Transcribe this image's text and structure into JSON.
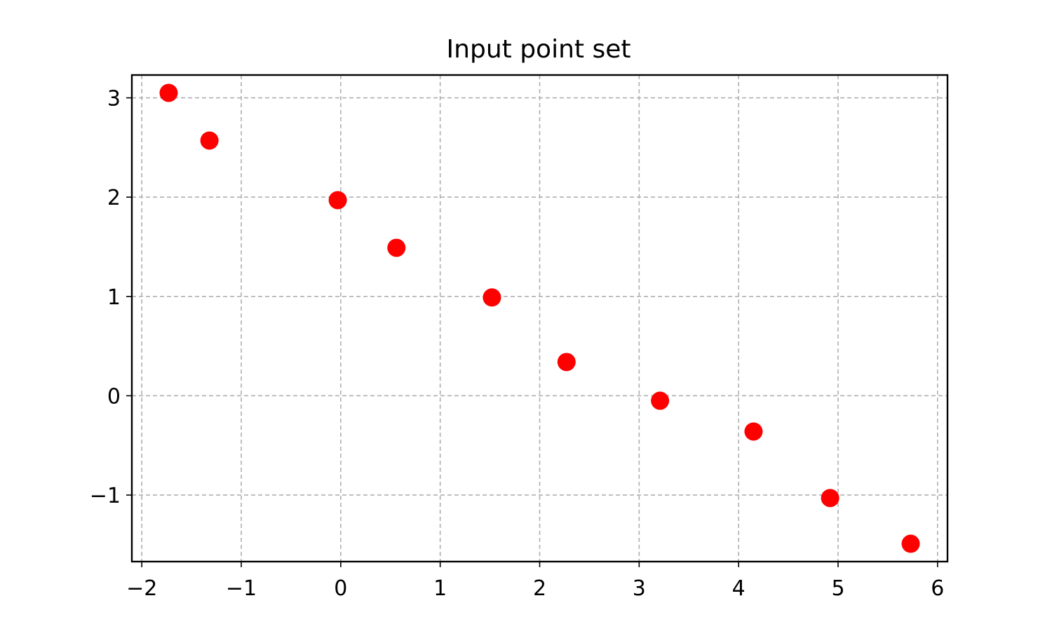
{
  "chart_data": {
    "type": "scatter",
    "title": "Input point set",
    "xlabel": "",
    "ylabel": "",
    "xlim": [
      -2.1,
      6.1
    ],
    "ylim": [
      -1.67,
      3.23
    ],
    "x_ticks": [
      -2,
      -1,
      0,
      1,
      2,
      3,
      4,
      5,
      6
    ],
    "x_tick_labels": [
      "−2",
      "−1",
      "0",
      "1",
      "2",
      "3",
      "4",
      "5",
      "6"
    ],
    "y_ticks": [
      -1,
      0,
      1,
      2,
      3
    ],
    "y_tick_labels": [
      "−1",
      "0",
      "1",
      "2",
      "3"
    ],
    "grid": true,
    "grid_style": "dashed",
    "marker_color": "#ff0000",
    "marker": "circle",
    "points": [
      {
        "x": -1.73,
        "y": 3.05
      },
      {
        "x": -1.32,
        "y": 2.57
      },
      {
        "x": -0.03,
        "y": 1.97
      },
      {
        "x": 0.56,
        "y": 1.49
      },
      {
        "x": 1.52,
        "y": 0.99
      },
      {
        "x": 2.27,
        "y": 0.34
      },
      {
        "x": 3.21,
        "y": -0.05
      },
      {
        "x": 4.15,
        "y": -0.36
      },
      {
        "x": 4.92,
        "y": -1.03
      },
      {
        "x": 5.73,
        "y": -1.49
      }
    ]
  }
}
